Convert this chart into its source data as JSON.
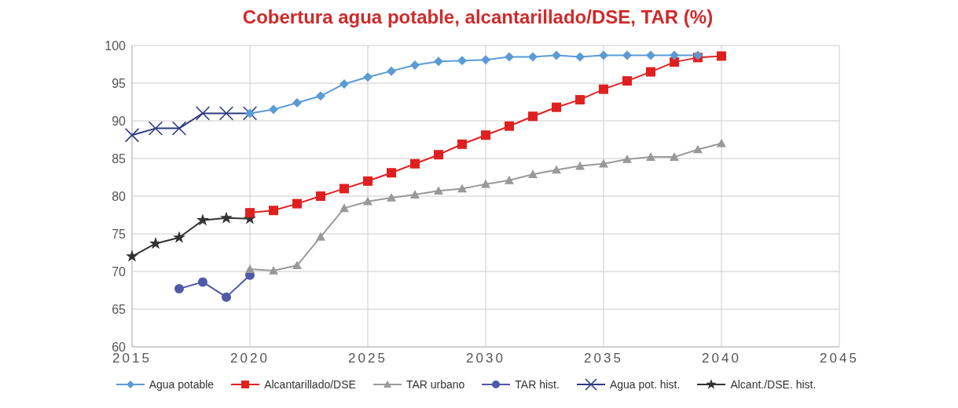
{
  "chart_data": {
    "type": "line",
    "title": "Cobertura agua potable, alcantarillado/DSE, TAR (%)",
    "series": [
      {
        "name": "Agua potable",
        "color": "#5b9bd5",
        "marker": "diamond",
        "x": [
          2020,
          2021,
          2022,
          2023,
          2024,
          2025,
          2026,
          2027,
          2028,
          2029,
          2030,
          2031,
          2032,
          2033,
          2034,
          2035,
          2036,
          2037,
          2038,
          2039
        ],
        "values": [
          91.0,
          91.5,
          92.4,
          93.3,
          94.9,
          95.8,
          96.6,
          97.4,
          97.9,
          98.0,
          98.1,
          98.5,
          98.5,
          98.7,
          98.5,
          98.7,
          98.7,
          98.7,
          98.7,
          98.7
        ]
      },
      {
        "name": "Alcantarillado/DSE",
        "color": "#e02020",
        "marker": "square",
        "x": [
          2020,
          2021,
          2022,
          2023,
          2024,
          2025,
          2026,
          2027,
          2028,
          2029,
          2030,
          2031,
          2032,
          2033,
          2034,
          2035,
          2036,
          2037,
          2038,
          2039,
          2040
        ],
        "values": [
          77.8,
          78.1,
          79.0,
          80.0,
          81.0,
          82.0,
          83.1,
          84.3,
          85.5,
          86.9,
          88.1,
          89.3,
          90.6,
          91.8,
          92.8,
          94.2,
          95.3,
          96.5,
          97.8,
          98.4,
          98.6
        ]
      },
      {
        "name": "TAR urbano",
        "color": "#999999",
        "marker": "triangle",
        "x": [
          2020,
          2021,
          2022,
          2023,
          2024,
          2025,
          2026,
          2027,
          2028,
          2029,
          2030,
          2031,
          2032,
          2033,
          2034,
          2035,
          2036,
          2037,
          2038,
          2039,
          2040
        ],
        "values": [
          70.3,
          70.1,
          70.8,
          74.6,
          78.4,
          79.3,
          79.8,
          80.2,
          80.7,
          81.0,
          81.6,
          82.1,
          82.9,
          83.5,
          84.0,
          84.3,
          84.9,
          85.2,
          85.2,
          86.2,
          87.0
        ]
      },
      {
        "name": "TAR hist.",
        "color": "#5058a8",
        "marker": "circle",
        "x": [
          2017,
          2018,
          2019,
          2020
        ],
        "values": [
          67.7,
          68.6,
          66.6,
          69.5
        ]
      },
      {
        "name": "Agua pot. hist.",
        "color": "#2e3a80",
        "marker": "cross",
        "x": [
          2015,
          2016,
          2017,
          2018,
          2019,
          2020
        ],
        "values": [
          88.1,
          89.0,
          89.0,
          91.0,
          91.0,
          91.0
        ]
      },
      {
        "name": "Alcant./DSE. hist.",
        "color": "#333333",
        "marker": "star",
        "x": [
          2015,
          2016,
          2017,
          2018,
          2019,
          2020
        ],
        "values": [
          72.0,
          73.7,
          74.5,
          76.8,
          77.1,
          77.0
        ]
      }
    ],
    "xlim": [
      2015,
      2045
    ],
    "xticks": [
      2015,
      2020,
      2025,
      2030,
      2035,
      2040,
      2045
    ],
    "ylim": [
      60,
      100
    ],
    "yticks": [
      60,
      65,
      70,
      75,
      80,
      85,
      90,
      95,
      100
    ],
    "grid": true,
    "legend": "bottom",
    "line_style": "solid"
  }
}
